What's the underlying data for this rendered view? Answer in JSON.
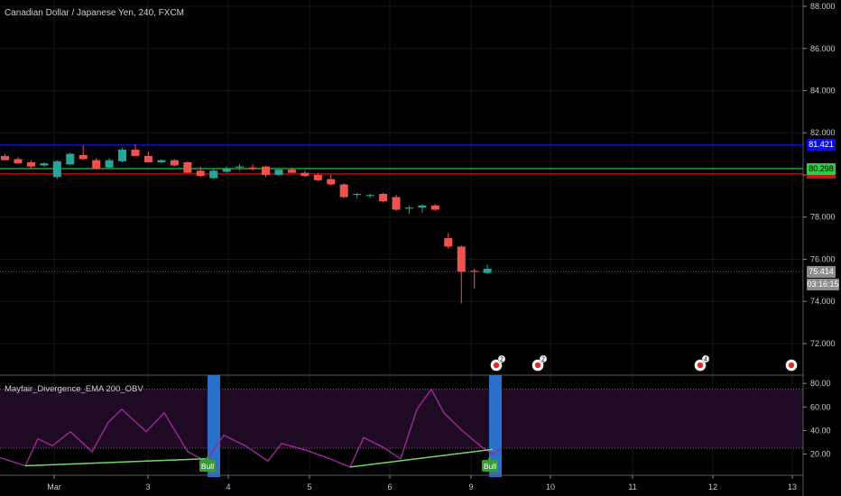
{
  "chart_title": "Canadian Dollar / Japanese Yen, 240, FXCM",
  "indicator_title": "Mayfair_Divergence_EMA 200_OBV",
  "price_tags": {
    "blue": {
      "value": "81.421",
      "color": "#0d0dd8"
    },
    "green": {
      "value": "80.298",
      "color": "#2ecc40"
    },
    "red": {
      "value": "",
      "color": "#d01010"
    },
    "last": {
      "value": "75.414",
      "color": "#8c8c8c"
    },
    "countdown": {
      "value": "03:16:15",
      "color": "#8c8c8c"
    }
  },
  "colors": {
    "up": "#26a69a",
    "down": "#ef5350",
    "obv": "#a0279f",
    "trend": "#6fd86f",
    "div_bar": "#2a6fc9"
  },
  "chart_data": {
    "type": "candlestick",
    "title": "Canadian Dollar / Japanese Yen, 240, FXCM",
    "x_ticks": [
      "Mar",
      "3",
      "4",
      "5",
      "6",
      "9",
      "10",
      "11",
      "12",
      "13"
    ],
    "price_axis": {
      "ticks": [
        "88.000",
        "86.000",
        "84.000",
        "82.000",
        "80.000",
        "78.000",
        "76.000",
        "74.000",
        "72.000"
      ],
      "ylim": [
        70.5,
        88.3
      ]
    },
    "horizontal_lines": [
      {
        "value": 81.421,
        "color": "blue"
      },
      {
        "value": 80.298,
        "color": "green"
      },
      {
        "value": 80.05,
        "color": "red"
      },
      {
        "value": 75.414,
        "color": "dotted-grey"
      }
    ],
    "candles": [
      {
        "i": 0,
        "o": 80.9,
        "h": 81.0,
        "l": 80.7,
        "c": 80.7
      },
      {
        "i": 1,
        "o": 80.75,
        "h": 80.85,
        "l": 80.55,
        "c": 80.55
      },
      {
        "i": 2,
        "o": 80.6,
        "h": 80.7,
        "l": 80.3,
        "c": 80.4
      },
      {
        "i": 3,
        "o": 80.45,
        "h": 80.6,
        "l": 80.4,
        "c": 80.55
      },
      {
        "i": 4,
        "o": 79.9,
        "h": 80.7,
        "l": 79.8,
        "c": 80.65
      },
      {
        "i": 5,
        "o": 80.5,
        "h": 81.05,
        "l": 80.45,
        "c": 81.0
      },
      {
        "i": 6,
        "o": 80.95,
        "h": 81.4,
        "l": 80.7,
        "c": 80.75
      },
      {
        "i": 7,
        "o": 80.7,
        "h": 80.8,
        "l": 80.3,
        "c": 80.3
      },
      {
        "i": 8,
        "o": 80.35,
        "h": 80.8,
        "l": 80.3,
        "c": 80.7
      },
      {
        "i": 9,
        "o": 80.65,
        "h": 81.3,
        "l": 80.6,
        "c": 81.2
      },
      {
        "i": 10,
        "o": 81.2,
        "h": 81.45,
        "l": 80.9,
        "c": 80.9
      },
      {
        "i": 11,
        "o": 80.9,
        "h": 81.1,
        "l": 80.6,
        "c": 80.6
      },
      {
        "i": 12,
        "o": 80.6,
        "h": 80.75,
        "l": 80.55,
        "c": 80.7
      },
      {
        "i": 13,
        "o": 80.7,
        "h": 80.75,
        "l": 80.4,
        "c": 80.45
      },
      {
        "i": 14,
        "o": 80.6,
        "h": 80.65,
        "l": 80.1,
        "c": 80.1
      },
      {
        "i": 15,
        "o": 80.2,
        "h": 80.4,
        "l": 79.9,
        "c": 79.95
      },
      {
        "i": 16,
        "o": 79.85,
        "h": 80.3,
        "l": 79.8,
        "c": 80.2
      },
      {
        "i": 17,
        "o": 80.15,
        "h": 80.4,
        "l": 80.1,
        "c": 80.3
      },
      {
        "i": 18,
        "o": 80.35,
        "h": 80.5,
        "l": 80.2,
        "c": 80.4
      },
      {
        "i": 19,
        "o": 80.35,
        "h": 80.5,
        "l": 80.2,
        "c": 80.3
      },
      {
        "i": 20,
        "o": 80.4,
        "h": 80.45,
        "l": 79.9,
        "c": 80.0
      },
      {
        "i": 21,
        "o": 80.0,
        "h": 80.3,
        "l": 79.95,
        "c": 80.25
      },
      {
        "i": 22,
        "o": 80.25,
        "h": 80.35,
        "l": 80.1,
        "c": 80.1
      },
      {
        "i": 23,
        "o": 80.1,
        "h": 80.2,
        "l": 79.9,
        "c": 79.95
      },
      {
        "i": 24,
        "o": 80.0,
        "h": 80.1,
        "l": 79.7,
        "c": 79.75
      },
      {
        "i": 25,
        "o": 79.8,
        "h": 80.0,
        "l": 79.5,
        "c": 79.55
      },
      {
        "i": 26,
        "o": 79.55,
        "h": 79.6,
        "l": 78.9,
        "c": 78.95
      },
      {
        "i": 27,
        "o": 79.05,
        "h": 79.15,
        "l": 78.9,
        "c": 79.1
      },
      {
        "i": 28,
        "o": 79.0,
        "h": 79.1,
        "l": 78.9,
        "c": 79.05
      },
      {
        "i": 29,
        "o": 79.1,
        "h": 79.15,
        "l": 78.7,
        "c": 78.75
      },
      {
        "i": 30,
        "o": 78.95,
        "h": 79.05,
        "l": 78.3,
        "c": 78.35
      },
      {
        "i": 31,
        "o": 78.4,
        "h": 78.55,
        "l": 78.15,
        "c": 78.45
      },
      {
        "i": 32,
        "o": 78.45,
        "h": 78.6,
        "l": 78.2,
        "c": 78.55
      },
      {
        "i": 33,
        "o": 78.55,
        "h": 78.6,
        "l": 78.3,
        "c": 78.35
      },
      {
        "i": 34,
        "o": 77.0,
        "h": 77.25,
        "l": 76.5,
        "c": 76.6
      },
      {
        "i": 35,
        "o": 76.6,
        "h": 76.65,
        "l": 73.9,
        "c": 75.4
      },
      {
        "i": 36,
        "o": 75.45,
        "h": 75.55,
        "l": 74.6,
        "c": 75.4
      },
      {
        "i": 37,
        "o": 75.35,
        "h": 75.75,
        "l": 75.3,
        "c": 75.55
      }
    ],
    "event_markers": [
      {
        "x": 550,
        "label": "2"
      },
      {
        "x": 596,
        "label": "2"
      },
      {
        "x": 776,
        "label": "4"
      },
      {
        "x": 877,
        "label": ""
      }
    ],
    "indicator": {
      "name": "Mayfair_Divergence_EMA 200_OBV",
      "axis_ticks": [
        "80.00",
        "60.00",
        "40.00",
        "20.00"
      ],
      "ylim": [
        2,
        87
      ],
      "levels": [
        75,
        25
      ],
      "obv_line": [
        [
          0,
          17
        ],
        [
          28,
          10
        ],
        [
          42,
          33
        ],
        [
          58,
          27
        ],
        [
          78,
          39
        ],
        [
          102,
          22
        ],
        [
          120,
          47
        ],
        [
          135,
          58
        ],
        [
          162,
          39
        ],
        [
          182,
          55
        ],
        [
          208,
          22
        ],
        [
          228,
          14
        ],
        [
          248,
          36
        ],
        [
          272,
          27
        ],
        [
          297,
          14
        ],
        [
          312,
          29
        ],
        [
          340,
          23
        ],
        [
          362,
          17
        ],
        [
          388,
          9
        ],
        [
          403,
          34
        ],
        [
          424,
          26
        ],
        [
          444,
          16
        ],
        [
          462,
          58
        ],
        [
          478,
          75
        ],
        [
          492,
          55
        ],
        [
          512,
          40
        ],
        [
          534,
          26
        ],
        [
          546,
          20
        ],
        [
          554,
          24
        ]
      ],
      "trendlines": [
        {
          "from": [
            28,
            10
          ],
          "to": [
            228,
            16
          ]
        },
        {
          "from": [
            388,
            9
          ],
          "to": [
            546,
            24
          ]
        }
      ],
      "divergence_bars": [
        {
          "x": 237
        },
        {
          "x": 549
        }
      ],
      "bull_labels": [
        {
          "x": 222,
          "text": "Bull"
        },
        {
          "x": 535,
          "text": "Bull"
        }
      ]
    }
  }
}
